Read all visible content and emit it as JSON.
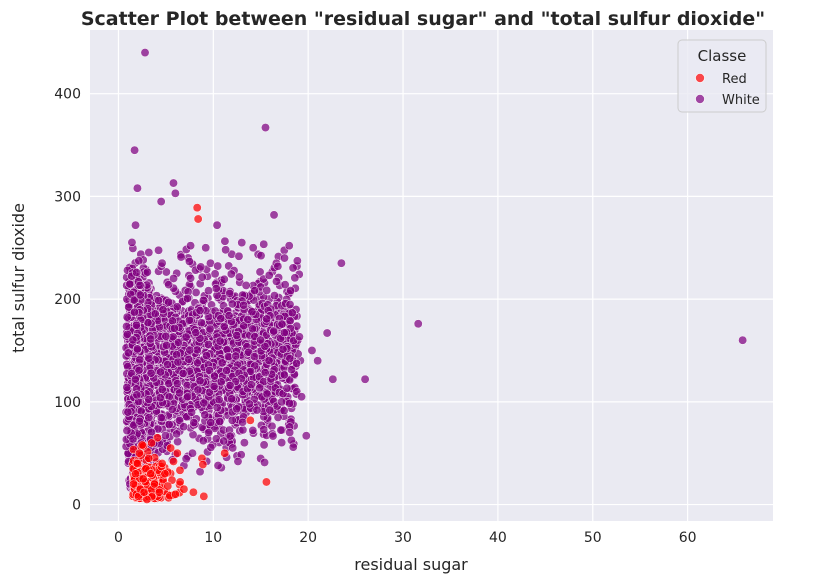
{
  "chart_data": {
    "type": "scatter",
    "title": "Scatter Plot between \"residual sugar\" and \"total sulfur dioxide\"",
    "xlabel": "residual sugar",
    "ylabel": "total sulfur dioxide",
    "xlim": [
      -3,
      69
    ],
    "ylim": [
      -16,
      462
    ],
    "xticks": [
      0,
      10,
      20,
      30,
      40,
      50,
      60
    ],
    "yticks": [
      0,
      100,
      200,
      300,
      400
    ],
    "grid": true,
    "legend": {
      "title": "Classe",
      "placement": "top-right",
      "entries": [
        {
          "name": "Red",
          "color": "#ff0000"
        },
        {
          "name": "White",
          "color": "#800080"
        }
      ]
    },
    "series": [
      {
        "name": "White",
        "color": "#800080",
        "points": [
          [
            2.8,
            440
          ],
          [
            15.5,
            367
          ],
          [
            1.7,
            345
          ],
          [
            2.0,
            308
          ],
          [
            5.8,
            313
          ],
          [
            6.0,
            303
          ],
          [
            4.5,
            295
          ],
          [
            10.4,
            272
          ],
          [
            16.4,
            282
          ],
          [
            1.8,
            272
          ],
          [
            65.8,
            160
          ],
          [
            31.6,
            176
          ],
          [
            26.0,
            122
          ],
          [
            23.5,
            235
          ],
          [
            22.6,
            122
          ],
          [
            22.0,
            167
          ],
          [
            19.8,
            67
          ],
          [
            15.4,
            41
          ],
          [
            13.0,
            255
          ],
          [
            12.0,
            82
          ],
          [
            9.5,
            70
          ],
          [
            8.6,
            32
          ],
          [
            10.5,
            38
          ],
          [
            12.6,
            42
          ],
          [
            7.8,
            50
          ],
          [
            11.4,
            46
          ],
          [
            1.5,
            30
          ],
          [
            1.2,
            20
          ],
          [
            1.0,
            90
          ],
          [
            0.9,
            72
          ],
          [
            2.4,
            60
          ],
          [
            3.1,
            40
          ],
          [
            18.8,
            110
          ],
          [
            20.4,
            150
          ],
          [
            21.0,
            140
          ],
          [
            19.3,
            105
          ],
          [
            17.2,
            100
          ],
          [
            14.6,
            92
          ],
          [
            13.8,
            98
          ],
          [
            18.0,
            252
          ],
          [
            17.5,
            240
          ],
          [
            16.8,
            232
          ],
          [
            4.6,
            235
          ],
          [
            7.6,
            252
          ],
          [
            9.2,
            250
          ],
          [
            14.2,
            250
          ],
          [
            11.3,
            248
          ],
          [
            6.6,
            241
          ]
        ]
      },
      {
        "name": "Red",
        "color": "#ff0000",
        "points": [
          [
            8.3,
            289
          ],
          [
            8.4,
            278
          ],
          [
            13.9,
            82
          ],
          [
            11.2,
            50
          ],
          [
            8.8,
            45
          ],
          [
            15.6,
            22
          ],
          [
            8.9,
            39
          ],
          [
            9.0,
            8
          ],
          [
            7.9,
            12
          ],
          [
            4.1,
            65
          ],
          [
            3.5,
            60
          ],
          [
            2.5,
            58
          ],
          [
            5.5,
            55
          ],
          [
            6.2,
            50
          ],
          [
            2.0,
            40
          ],
          [
            1.8,
            30
          ],
          [
            1.9,
            10
          ],
          [
            2.1,
            8
          ],
          [
            2.3,
            15
          ],
          [
            2.6,
            25
          ],
          [
            2.9,
            35
          ],
          [
            3.2,
            45
          ],
          [
            3.8,
            20
          ],
          [
            4.3,
            12
          ],
          [
            4.9,
            30
          ],
          [
            5.2,
            18
          ],
          [
            6.5,
            22
          ],
          [
            6.9,
            15
          ],
          [
            3.0,
            5
          ],
          [
            4.6,
            40
          ],
          [
            2.2,
            50
          ],
          [
            1.6,
            20
          ],
          [
            2.7,
            12
          ],
          [
            3.4,
            30
          ],
          [
            6.0,
            10
          ],
          [
            5.8,
            42
          ]
        ]
      }
    ]
  }
}
